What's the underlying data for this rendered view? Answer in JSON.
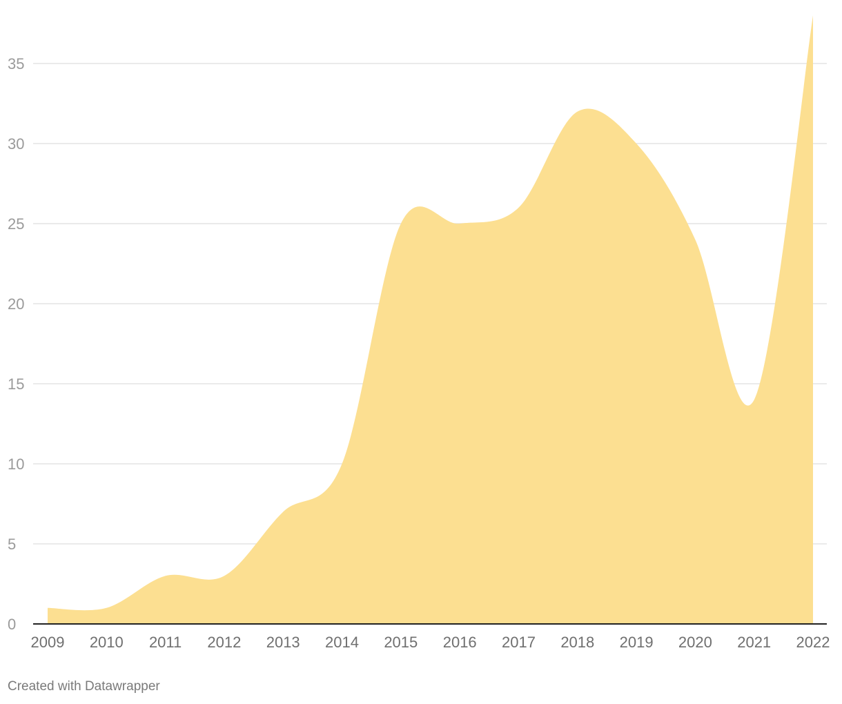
{
  "chart_data": {
    "type": "area",
    "x": [
      2009,
      2010,
      2011,
      2012,
      2013,
      2014,
      2015,
      2016,
      2017,
      2018,
      2019,
      2020,
      2021,
      2022
    ],
    "series": [
      {
        "values": [
          1,
          1,
          3,
          3,
          7,
          10,
          25,
          25,
          26,
          32,
          30,
          24,
          14,
          38
        ]
      }
    ],
    "x_tick_labels": [
      "2009",
      "2010",
      "2011",
      "2012",
      "2013",
      "2014",
      "2015",
      "2016",
      "2017",
      "2018",
      "2019",
      "2020",
      "2021",
      "2022"
    ],
    "y_ticks": [
      0,
      5,
      10,
      15,
      20,
      25,
      30,
      35
    ],
    "ylim": [
      0,
      38
    ],
    "grid": true,
    "fill_color": "#fcdf91",
    "baseline_color": "#222222"
  },
  "footer": {
    "credit": "Created with Datawrapper"
  }
}
